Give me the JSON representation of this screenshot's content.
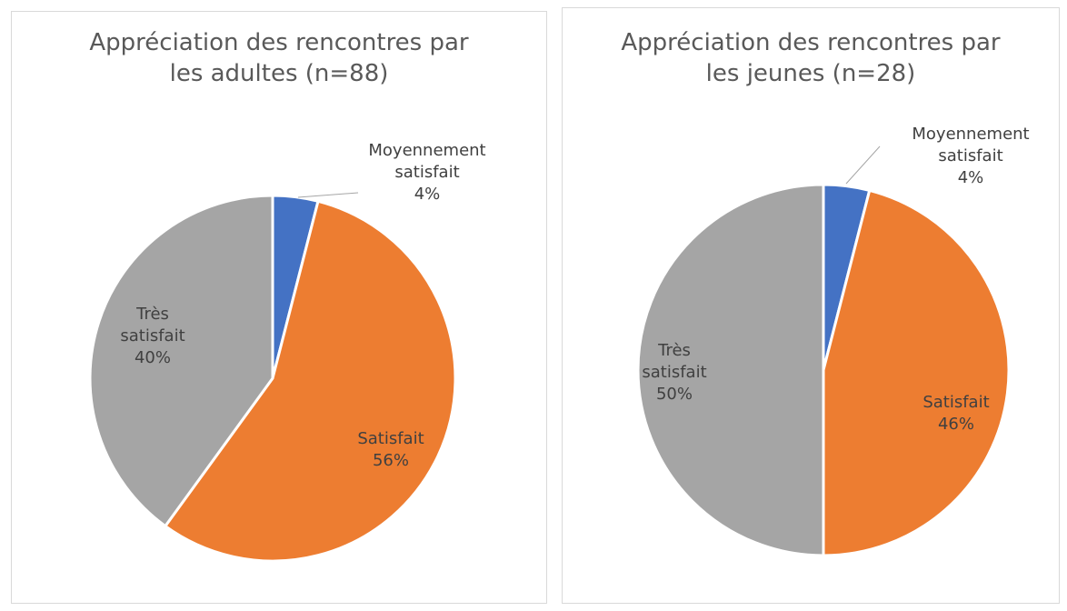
{
  "chart_data": [
    {
      "type": "pie",
      "title": "Appréciation des rencontres par les adultes (n=88)",
      "categories": [
        "Moyennement satisfait",
        "Satisfait",
        "Très satisfait"
      ],
      "values": [
        4,
        56,
        40
      ],
      "value_labels": [
        "4%",
        "56%",
        "40%"
      ],
      "colors": [
        "#4472c4",
        "#ed7d31",
        "#a5a5a5"
      ]
    },
    {
      "type": "pie",
      "title": "Appréciation des rencontres par les jeunes (n=28)",
      "categories": [
        "Moyennement satisfait",
        "Satisfait",
        "Très satisfait"
      ],
      "values": [
        4,
        46,
        50
      ],
      "value_labels": [
        "4%",
        "46%",
        "50%"
      ],
      "colors": [
        "#4472c4",
        "#ed7d31",
        "#a5a5a5"
      ]
    }
  ]
}
